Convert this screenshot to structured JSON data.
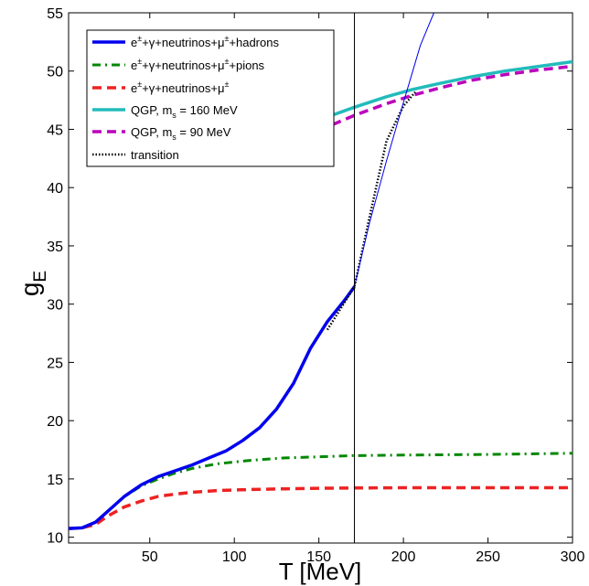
{
  "chart_data": {
    "type": "line",
    "xlabel": "T [MeV]",
    "ylabel_main": "g",
    "ylabel_sub": "E",
    "xlim": [
      2,
      300
    ],
    "ylim": [
      9.5,
      55
    ],
    "xticks": [
      50,
      100,
      150,
      200,
      250,
      300
    ],
    "yticks": [
      10,
      15,
      20,
      25,
      30,
      35,
      40,
      45,
      50,
      55
    ],
    "grid": false,
    "legend_position": "top-left",
    "transition_temperature": 171,
    "series": [
      {
        "name": "e±+γ+neutrinos+μ±+hadrons",
        "legend_parts": [
          "e",
          "±",
          "+γ+neutrinos+μ",
          "±",
          "+hadrons"
        ],
        "color": "#0000ee",
        "style": "solid",
        "x": [
          2,
          10,
          18,
          25,
          35,
          45,
          55,
          65,
          75,
          85,
          95,
          105,
          115,
          125,
          135,
          145,
          155,
          165,
          171
        ],
        "y": [
          10.75,
          10.8,
          11.3,
          12.2,
          13.5,
          14.5,
          15.2,
          15.7,
          16.2,
          16.8,
          17.4,
          18.3,
          19.4,
          21.0,
          23.2,
          26.2,
          28.5,
          30.3,
          31.5
        ]
      },
      {
        "name": "e±+γ+neutrinos+μ±+pions",
        "legend_parts": [
          "e",
          "±",
          "+γ+neutrinos+μ",
          "±",
          "+pions"
        ],
        "color": "#008800",
        "style": "dashdot",
        "x": [
          2,
          10,
          18,
          25,
          35,
          45,
          55,
          65,
          75,
          90,
          110,
          130,
          150,
          170,
          200,
          250,
          300
        ],
        "y": [
          10.75,
          10.8,
          11.3,
          12.2,
          13.5,
          14.4,
          15.0,
          15.5,
          15.9,
          16.3,
          16.6,
          16.8,
          16.9,
          17.0,
          17.05,
          17.1,
          17.2
        ]
      },
      {
        "name": "e±+γ+neutrinos+μ±",
        "legend_parts": [
          "e",
          "±",
          "+γ+neutrinos+μ",
          "±",
          ""
        ],
        "color": "#ee2222",
        "style": "dashed",
        "x": [
          2,
          10,
          18,
          25,
          35,
          45,
          55,
          65,
          75,
          90,
          110,
          130,
          150,
          170,
          200,
          250,
          300
        ],
        "y": [
          10.75,
          10.8,
          11.1,
          11.8,
          12.6,
          13.1,
          13.5,
          13.7,
          13.85,
          14.0,
          14.1,
          14.15,
          14.2,
          14.22,
          14.25,
          14.25,
          14.25
        ]
      },
      {
        "name": "QGP, m_s = 160 MeV",
        "legend_parts": [
          "QGP, m",
          "s",
          " = 160 MeV"
        ],
        "color": "#22bbbb",
        "style": "solid",
        "x": [
          150,
          171,
          190,
          205,
          220,
          240,
          260,
          280,
          300
        ],
        "y": [
          45.8,
          46.9,
          47.8,
          48.4,
          48.9,
          49.5,
          50.0,
          50.4,
          50.8
        ]
      },
      {
        "name": "QGP, m_s = 90 MeV",
        "legend_parts": [
          "QGP, m",
          "s",
          " = 90 MeV"
        ],
        "color": "#bb00bb",
        "style": "dashed",
        "x": [
          150,
          171,
          190,
          205,
          220,
          240,
          260,
          280,
          300
        ],
        "y": [
          44.9,
          46.2,
          47.2,
          47.9,
          48.5,
          49.2,
          49.7,
          50.1,
          50.4
        ]
      },
      {
        "name": "transition",
        "legend_parts": [
          "transition"
        ],
        "color": "#000000",
        "style": "dotted",
        "x": [
          155,
          171,
          180,
          190,
          200,
          207
        ],
        "y": [
          27.8,
          31.5,
          37.5,
          44.0,
          47.0,
          48.2
        ]
      },
      {
        "name": "",
        "color": "#0000ee",
        "style": "thin",
        "x": [
          171,
          180,
          190,
          200,
          210,
          218
        ],
        "y": [
          31.5,
          37.0,
          42.3,
          47.3,
          52.2,
          55.0
        ]
      }
    ]
  }
}
